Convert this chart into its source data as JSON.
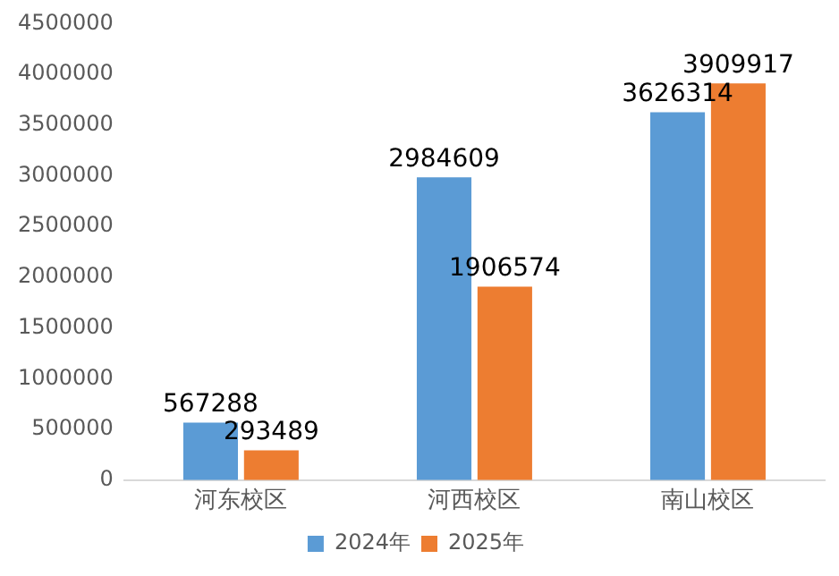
{
  "chart_data": {
    "type": "bar",
    "categories": [
      "河东校区",
      "河西校区",
      "南山校区"
    ],
    "series": [
      {
        "name": "2024年",
        "color": "#5b9bd5",
        "values": [
          567288,
          2984609,
          3626314
        ]
      },
      {
        "name": "2025年",
        "color": "#ed7d31",
        "values": [
          293489,
          1906574,
          3909917
        ]
      }
    ],
    "ylim": [
      0,
      4500000
    ],
    "yticks": [
      0,
      500000,
      1000000,
      1500000,
      2000000,
      2500000,
      3000000,
      3500000,
      4000000,
      4500000
    ],
    "grid": false,
    "legend": "bottom",
    "data_labels": true
  }
}
